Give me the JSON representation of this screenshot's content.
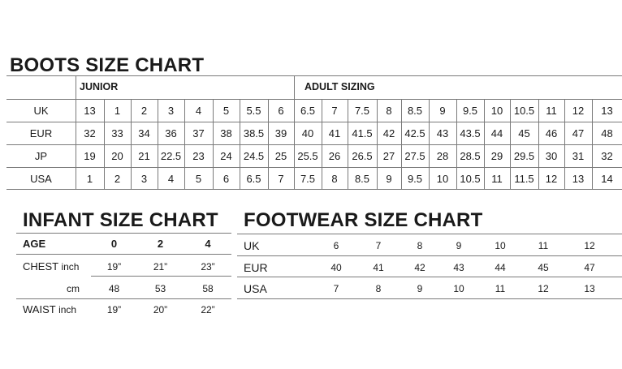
{
  "boots": {
    "title": "BOOTS SIZE CHART",
    "junior_label": "JUNIOR",
    "adult_label": "ADULT SIZING",
    "rows": [
      {
        "label": "UK",
        "values": [
          "13",
          "1",
          "2",
          "3",
          "4",
          "5",
          "5.5",
          "6",
          "6.5",
          "7",
          "7.5",
          "8",
          "8.5",
          "9",
          "9.5",
          "10",
          "10.5",
          "11",
          "12",
          "13"
        ]
      },
      {
        "label": "EUR",
        "values": [
          "32",
          "33",
          "34",
          "36",
          "37",
          "38",
          "38.5",
          "39",
          "40",
          "41",
          "41.5",
          "42",
          "42.5",
          "43",
          "43.5",
          "44",
          "45",
          "46",
          "47",
          "48"
        ]
      },
      {
        "label": "JP",
        "values": [
          "19",
          "20",
          "21",
          "22.5",
          "23",
          "24",
          "24.5",
          "25",
          "25.5",
          "26",
          "26.5",
          "27",
          "27.5",
          "28",
          "28.5",
          "29",
          "29.5",
          "30",
          "31",
          "32"
        ]
      },
      {
        "label": "USA",
        "values": [
          "1",
          "2",
          "3",
          "4",
          "5",
          "6",
          "6.5",
          "7",
          "7.5",
          "8",
          "8.5",
          "9",
          "9.5",
          "10",
          "10.5",
          "11",
          "11.5",
          "12",
          "13",
          "14"
        ]
      }
    ]
  },
  "infant": {
    "title": "INFANT SIZE CHART",
    "header": {
      "label": "AGE",
      "values": [
        "0",
        "2",
        "4"
      ]
    },
    "chest": {
      "label": "CHEST",
      "unit": "inch",
      "values": [
        "19”",
        "21”",
        "23”"
      ]
    },
    "chest_cm": {
      "unit": "cm",
      "values": [
        "48",
        "53",
        "58"
      ]
    },
    "waist": {
      "label": "WAIST",
      "unit": "inch",
      "values": [
        "19”",
        "20”",
        "22”"
      ]
    }
  },
  "footwear": {
    "title": "FOOTWEAR SIZE CHART",
    "rows": [
      {
        "label": "UK",
        "values": [
          "6",
          "7",
          "8",
          "9",
          "10",
          "11",
          "12"
        ]
      },
      {
        "label": "EUR",
        "values": [
          "40",
          "41",
          "42",
          "43",
          "44",
          "45",
          "47"
        ]
      },
      {
        "label": "USA",
        "values": [
          "7",
          "8",
          "9",
          "10",
          "11",
          "12",
          "13"
        ]
      }
    ]
  }
}
